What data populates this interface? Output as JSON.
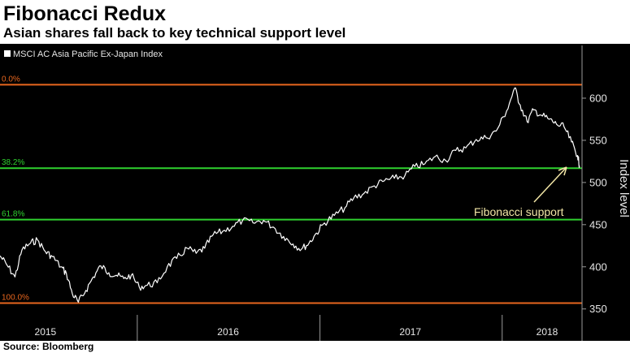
{
  "header": {
    "title": "Fibonacci Redux",
    "subtitle": "Asian shares fall back to key technical support level"
  },
  "footer": {
    "source": "Source: Bloomberg"
  },
  "chart_data": {
    "type": "line",
    "title": "Fibonacci Redux",
    "subtitle": "Asian shares fall back to key technical support level",
    "legend": {
      "label": "MSCI AC Asia Pacific Ex-Japan Index",
      "position": "top-left"
    },
    "ylabel": "Index level",
    "y_axis_side": "right",
    "ylim": [
      343,
      625
    ],
    "xlim": [
      "2015-04-01",
      "2018-06-10"
    ],
    "yticks": [
      350,
      400,
      450,
      500,
      550,
      600
    ],
    "xticks": [
      {
        "label": "2015",
        "at": "2015-07-01"
      },
      {
        "label": "2016",
        "at": "2016-07-01"
      },
      {
        "label": "2017",
        "at": "2017-07-01"
      },
      {
        "label": "2018",
        "at": "2018-04-01"
      }
    ],
    "year_boundaries": [
      "2016-01-01",
      "2017-01-01",
      "2018-01-01"
    ],
    "grid": false,
    "fib_levels": [
      {
        "label": "0.0%",
        "value": 616,
        "color": "#e8661e"
      },
      {
        "label": "38.2%",
        "value": 517,
        "color": "#2fd12f"
      },
      {
        "label": "61.8%",
        "value": 456,
        "color": "#2fd12f"
      },
      {
        "label": "100.0%",
        "value": 357,
        "color": "#e8661e"
      }
    ],
    "annotation": {
      "text": "Fibonacci support",
      "color": "#f2e6a6"
    },
    "colors": {
      "background": "#000000",
      "line": "#ffffff",
      "axis_text": "#e6e6e6"
    },
    "series": [
      {
        "name": "MSCI AC Asia Pacific Ex-Japan Index",
        "x": [
          "2015-04-01",
          "2015-04-15",
          "2015-05-01",
          "2015-05-15",
          "2015-06-01",
          "2015-06-15",
          "2015-07-01",
          "2015-07-15",
          "2015-08-01",
          "2015-08-12",
          "2015-08-24",
          "2015-09-05",
          "2015-09-20",
          "2015-10-05",
          "2015-10-20",
          "2015-11-05",
          "2015-11-20",
          "2015-12-05",
          "2015-12-20",
          "2016-01-05",
          "2016-01-21",
          "2016-02-10",
          "2016-03-01",
          "2016-03-20",
          "2016-04-10",
          "2016-04-28",
          "2016-05-15",
          "2016-06-01",
          "2016-06-20",
          "2016-07-10",
          "2016-07-30",
          "2016-08-20",
          "2016-09-10",
          "2016-09-30",
          "2016-10-20",
          "2016-11-08",
          "2016-11-25",
          "2016-12-10",
          "2016-12-25",
          "2017-01-10",
          "2017-01-30",
          "2017-02-20",
          "2017-03-10",
          "2017-03-30",
          "2017-04-20",
          "2017-05-10",
          "2017-05-30",
          "2017-06-20",
          "2017-07-10",
          "2017-07-30",
          "2017-08-20",
          "2017-09-10",
          "2017-09-30",
          "2017-10-20",
          "2017-11-10",
          "2017-11-30",
          "2017-12-20",
          "2018-01-10",
          "2018-01-26",
          "2018-02-06",
          "2018-02-20",
          "2018-03-05",
          "2018-03-20",
          "2018-04-05",
          "2018-04-20",
          "2018-05-05",
          "2018-05-20",
          "2018-06-01",
          "2018-06-05"
        ],
        "values": [
          413,
          402,
          388,
          420,
          428,
          432,
          418,
          412,
          400,
          392,
          368,
          358,
          372,
          388,
          401,
          393,
          390,
          386,
          390,
          376,
          378,
          381,
          400,
          410,
          422,
          416,
          422,
          438,
          442,
          448,
          455,
          452,
          455,
          447,
          436,
          427,
          421,
          428,
          440,
          452,
          461,
          470,
          482,
          487,
          496,
          502,
          505,
          508,
          519,
          522,
          531,
          526,
          538,
          541,
          551,
          553,
          561,
          585,
          612,
          592,
          572,
          586,
          580,
          575,
          569,
          566,
          548,
          532,
          520
        ]
      }
    ]
  }
}
